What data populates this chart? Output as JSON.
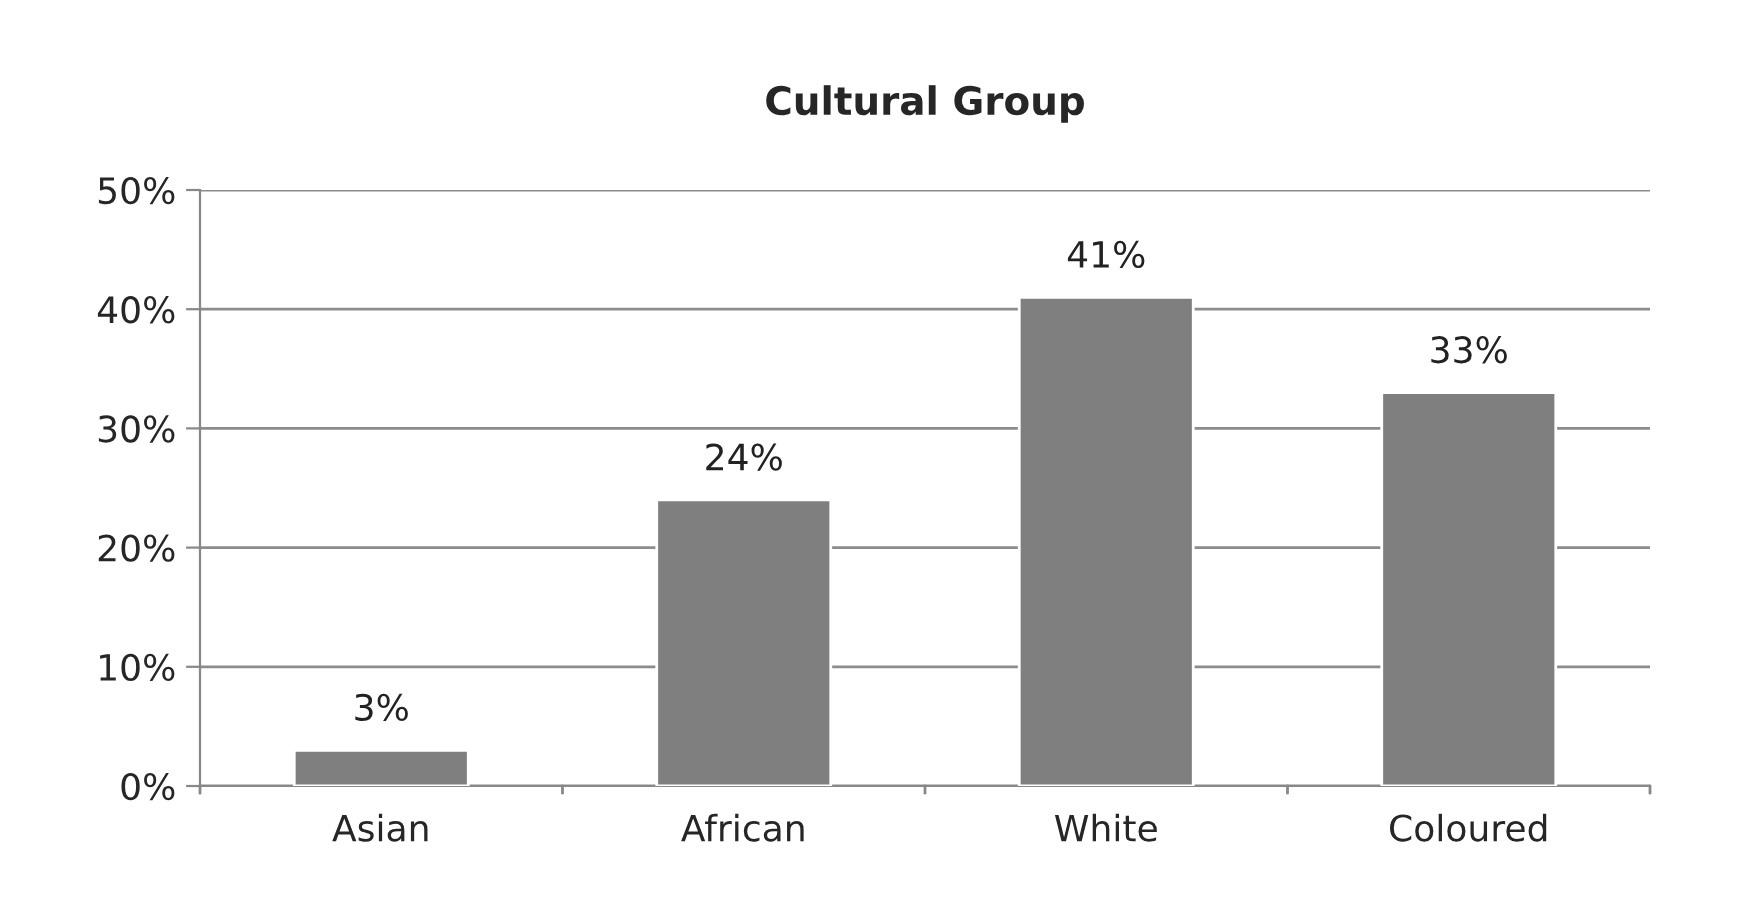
{
  "chart_data": {
    "type": "bar",
    "title": "Cultural Group",
    "categories": [
      "Asian",
      "African",
      "White",
      "Coloured"
    ],
    "values": [
      3,
      24,
      41,
      33
    ],
    "value_labels": [
      "3%",
      "24%",
      "41%",
      "33%"
    ],
    "color": "#7f7f7f",
    "ylim": [
      0,
      50
    ],
    "yticks": [
      {
        "value": 0,
        "label": "0%"
      },
      {
        "value": 10,
        "label": "10%"
      },
      {
        "value": 20,
        "label": "20%"
      },
      {
        "value": 30,
        "label": "30%"
      },
      {
        "value": 40,
        "label": "40%"
      },
      {
        "value": 50,
        "label": "50%"
      }
    ],
    "grid": "y"
  }
}
